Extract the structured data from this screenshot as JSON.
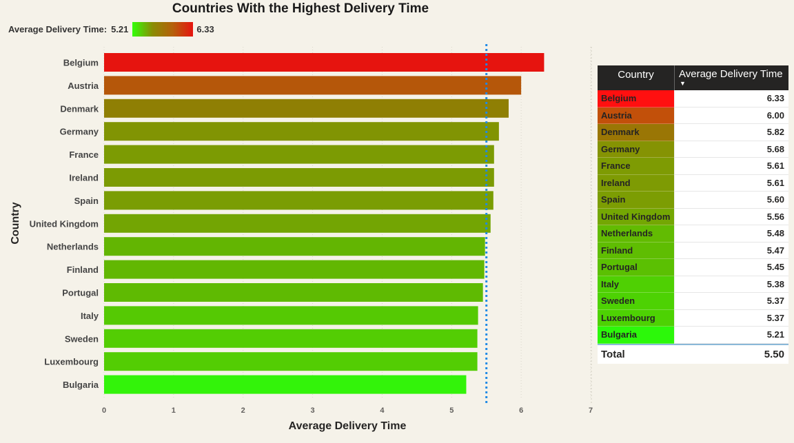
{
  "chart_data": {
    "type": "bar",
    "orientation": "horizontal",
    "title": "Countries With the Highest Delivery Time",
    "xlabel": "Average Delivery Time",
    "ylabel": "Country",
    "xlim": [
      0,
      7
    ],
    "xticks": [
      "0",
      "1",
      "2",
      "3",
      "4",
      "5",
      "6",
      "7"
    ],
    "reference_line": 5.5,
    "categories": [
      "Belgium",
      "Austria",
      "Denmark",
      "Germany",
      "France",
      "Ireland",
      "Spain",
      "United Kingdom",
      "Netherlands",
      "Finland",
      "Portugal",
      "Italy",
      "Sweden",
      "Luxembourg",
      "Bulgaria"
    ],
    "values": [
      6.33,
      6.0,
      5.82,
      5.68,
      5.61,
      5.61,
      5.6,
      5.56,
      5.48,
      5.47,
      5.45,
      5.38,
      5.37,
      5.37,
      5.21
    ],
    "bar_colors": [
      "#e6140f",
      "#b5570a",
      "#8f7f04",
      "#819403",
      "#7c9b03",
      "#7c9b03",
      "#7a9d03",
      "#73a503",
      "#63b502",
      "#62b702",
      "#5fba02",
      "#55c903",
      "#53cd03",
      "#53cd03",
      "#33f30a"
    ],
    "color_legend": {
      "label": "Average Delivery Time:",
      "min_label": "5.21",
      "max_label": "6.33",
      "min_color": "#33ff0a",
      "max_color": "#e6140f"
    }
  },
  "table": {
    "header_country": "Country",
    "header_value": "Average Delivery Time",
    "sort_icon": "▼",
    "rows": [
      {
        "country": "Belgium",
        "value": "6.33",
        "color": "#ff1010"
      },
      {
        "country": "Austria",
        "value": "6.00",
        "color": "#c2500a"
      },
      {
        "country": "Denmark",
        "value": "5.82",
        "color": "#9a7605"
      },
      {
        "country": "Germany",
        "value": "5.68",
        "color": "#859303"
      },
      {
        "country": "France",
        "value": "5.61",
        "color": "#7e9b03"
      },
      {
        "country": "Ireland",
        "value": "5.61",
        "color": "#7e9b03"
      },
      {
        "country": "Spain",
        "value": "5.60",
        "color": "#7c9d03"
      },
      {
        "country": "United Kingdom",
        "value": "5.56",
        "color": "#74a703"
      },
      {
        "country": "Netherlands",
        "value": "5.48",
        "color": "#62bb02"
      },
      {
        "country": "Finland",
        "value": "5.47",
        "color": "#5fbd02"
      },
      {
        "country": "Portugal",
        "value": "5.45",
        "color": "#5bc002"
      },
      {
        "country": "Italy",
        "value": "5.38",
        "color": "#4fd003"
      },
      {
        "country": "Sweden",
        "value": "5.37",
        "color": "#4dd203"
      },
      {
        "country": "Luxembourg",
        "value": "5.37",
        "color": "#4dd203"
      },
      {
        "country": "Bulgaria",
        "value": "5.21",
        "color": "#2cf80a"
      }
    ],
    "total_label": "Total",
    "total_value": "5.50"
  }
}
